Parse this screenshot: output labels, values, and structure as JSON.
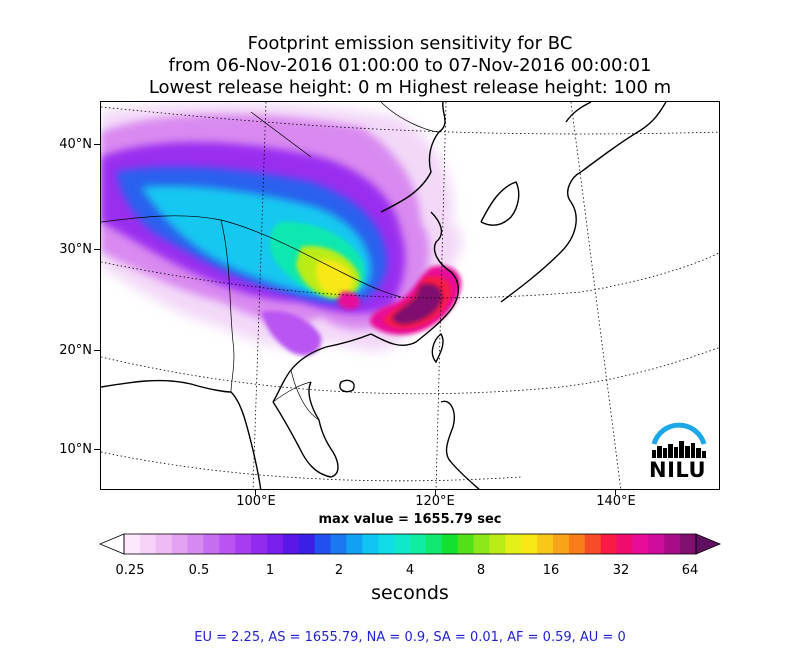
{
  "title": {
    "line1": "Footprint emission sensitivity for BC",
    "line2": "from 06-Nov-2016 01:00:00 to 07-Nov-2016 00:00:01",
    "line3": "Lowest release height: 0 m      Highest release height: 100 m"
  },
  "map": {
    "lat_labels": [
      "40°N",
      "30°N",
      "20°N",
      "10°N"
    ],
    "lon_labels": [
      "100°E",
      "120°E",
      "140°E"
    ],
    "logo_text": "NILU",
    "colors": {
      "ocean": "#ffffff",
      "coast": "#000000",
      "grid": "#000000"
    }
  },
  "max_value_text": "max value = 1655.79 sec",
  "colorbar": {
    "tick_labels": [
      "0.25",
      "0.5",
      "1",
      "2",
      "4",
      "8",
      "16",
      "32",
      "64"
    ],
    "label": "seconds",
    "colors": [
      "#fde9fd",
      "#f6d2f8",
      "#eebcf5",
      "#e3a2f1",
      "#d68aef",
      "#c66ef0",
      "#b954f2",
      "#a83cf0",
      "#922af0",
      "#7a20ee",
      "#5a18e8",
      "#3a20e6",
      "#2250ee",
      "#1a78f0",
      "#10a0f4",
      "#10c4f4",
      "#10dce8",
      "#10e8cc",
      "#10eca0",
      "#10e870",
      "#14e030",
      "#54e018",
      "#8ce818",
      "#bcec18",
      "#e4f018",
      "#f8e818",
      "#f8c818",
      "#f8a418",
      "#f87c18",
      "#f84c28",
      "#f81c44",
      "#f00c6c",
      "#e80c98",
      "#d00c9c",
      "#a80c88",
      "#801070"
    ]
  },
  "stats_text": "EU = 2.25,  AS = 1655.79,  NA = 0.9,  SA = 0.01,  AF = 0.59,  AU = 0"
}
